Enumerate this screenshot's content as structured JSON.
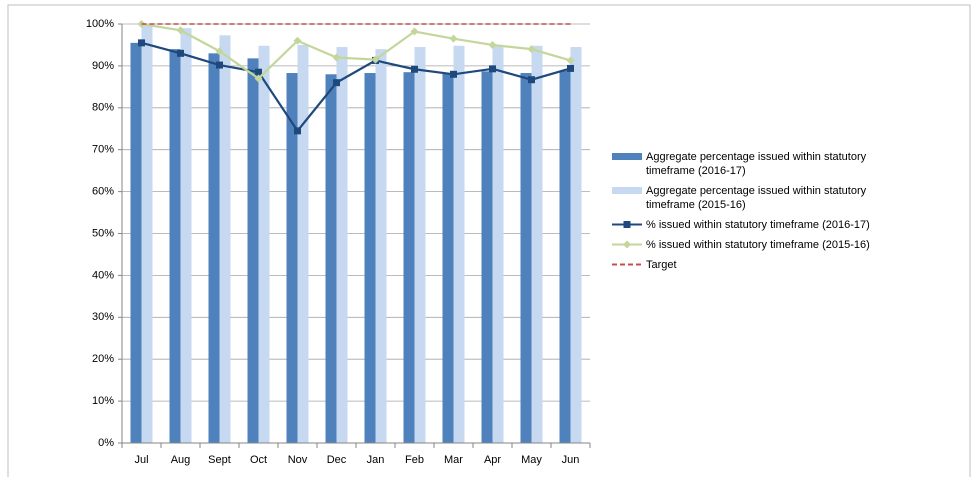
{
  "chart_data": {
    "type": "bar",
    "categories": [
      "Jul",
      "Aug",
      "Sept",
      "Oct",
      "Nov",
      "Dec",
      "Jan",
      "Feb",
      "Mar",
      "Apr",
      "May",
      "Jun"
    ],
    "series": [
      {
        "name": "Aggregate percentage issued within statutory timeframe (2016-17)",
        "type": "bar",
        "color": "#4f81bd",
        "values": [
          95.5,
          94,
          93,
          91.8,
          88.3,
          88,
          88.3,
          88.5,
          88.3,
          88.7,
          88.3,
          88.8
        ]
      },
      {
        "name": "Aggregate percentage issued within statutory timeframe (2015-16)",
        "type": "bar",
        "color": "#c6d9f1",
        "values": [
          100,
          99,
          97.3,
          94.8,
          95,
          94.5,
          94,
          94.5,
          94.8,
          94.8,
          94.8,
          94.5
        ]
      },
      {
        "name": "% issued within statutory timeframe (2016-17)",
        "type": "line",
        "color": "#1f497d",
        "marker": "square",
        "values": [
          95.5,
          93,
          90.2,
          88.5,
          74.5,
          86,
          91.3,
          89.2,
          88,
          89.3,
          86.7,
          89.4
        ]
      },
      {
        "name": "% issued within statutory timeframe (2015-16)",
        "type": "line",
        "color": "#c3d69b",
        "marker": "diamond",
        "values": [
          100,
          98.5,
          93.5,
          87,
          96,
          92,
          91.5,
          98.2,
          96.5,
          95,
          94,
          91.3
        ]
      },
      {
        "name": "Target",
        "type": "line",
        "color": "#c0504d",
        "dashed": true,
        "values": [
          100,
          100,
          100,
          100,
          100,
          100,
          100,
          100,
          100,
          100,
          100,
          100
        ]
      }
    ],
    "ylim": [
      0,
      100
    ],
    "yticks": [
      {
        "value": 0,
        "label": "0%"
      },
      {
        "value": 10,
        "label": "10%"
      },
      {
        "value": 20,
        "label": "20%"
      },
      {
        "value": 30,
        "label": "30%"
      },
      {
        "value": 40,
        "label": "40%"
      },
      {
        "value": 50,
        "label": "50%"
      },
      {
        "value": 60,
        "label": "60%"
      },
      {
        "value": 70,
        "label": "70%"
      },
      {
        "value": 80,
        "label": "80%"
      },
      {
        "value": 90,
        "label": "90%"
      },
      {
        "value": 100,
        "label": "100%"
      }
    ],
    "grid": true,
    "legend": "right"
  }
}
